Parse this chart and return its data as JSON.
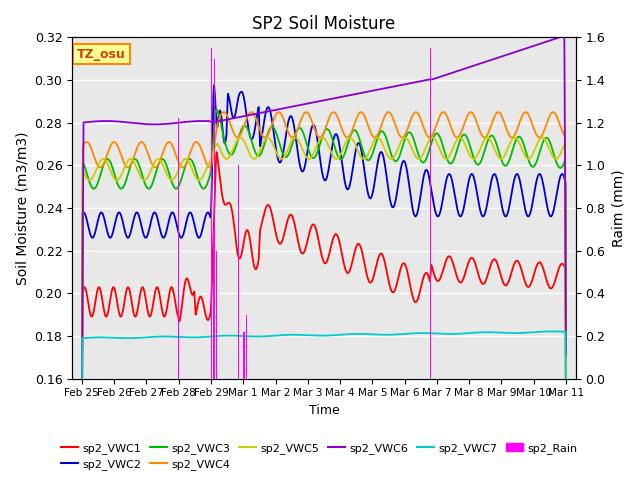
{
  "title": "SP2 Soil Moisture",
  "ylabel_left": "Soil Moisture (m3/m3)",
  "ylabel_right": "Raim (mm)",
  "xlabel": "Time",
  "ylim_left": [
    0.16,
    0.32
  ],
  "ylim_right": [
    0.0,
    1.6
  ],
  "background_color": "#e8e8e8",
  "tz_label": "TZ_osu",
  "series": {
    "sp2_VWC1": {
      "color": "#ff0000",
      "legend": "sp2_VWC1"
    },
    "sp2_VWC2": {
      "color": "#0000cc",
      "legend": "sp2_VWC2"
    },
    "sp2_VWC3": {
      "color": "#00bb00",
      "legend": "sp2_VWC3"
    },
    "sp2_VWC4": {
      "color": "#ff8800",
      "legend": "sp2_VWC4"
    },
    "sp2_VWC5": {
      "color": "#cccc00",
      "legend": "sp2_VWC5"
    },
    "sp2_VWC6": {
      "color": "#8800cc",
      "legend": "sp2_VWC6"
    },
    "sp2_VWC7": {
      "color": "#00cccc",
      "legend": "sp2_VWC7"
    },
    "sp2_Rain": {
      "color": "#ff00ff",
      "legend": "sp2_Rain"
    }
  },
  "x_tick_labels": [
    "Feb 25",
    "Feb 26",
    "Feb 27",
    "Feb 28",
    "Feb 29",
    "Mar 1",
    "Mar 2",
    "Mar 3",
    "Mar 4",
    "Mar 5",
    "Mar 6",
    "Mar 7",
    "Mar 8",
    "Mar 9",
    "Mar 10",
    "Mar 11"
  ],
  "figsize": [
    6.4,
    4.8
  ],
  "dpi": 100
}
